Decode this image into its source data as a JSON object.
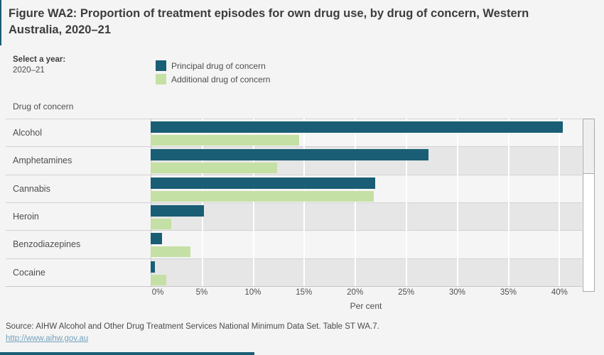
{
  "title": "Figure WA2: Proportion of treatment episodes for own drug use, by drug of concern, Western Australia, 2020–21",
  "year_selector": {
    "label": "Select a year:",
    "value": "2020–21"
  },
  "legend": [
    {
      "label": "Principal drug of concern",
      "color": "#195e75"
    },
    {
      "label": "Additional drug of concern",
      "color": "#c5e0a4"
    }
  ],
  "row_header": "Drug of concern",
  "chart_data": {
    "type": "bar",
    "orientation": "horizontal",
    "title": "Figure WA2: Proportion of treatment episodes for own drug use, by drug of concern, Western Australia, 2020–21",
    "categories": [
      "Alcohol",
      "Amphetamines",
      "Cannabis",
      "Heroin",
      "Benzodiazepines",
      "Cocaine"
    ],
    "series": [
      {
        "name": "Principal drug of concern",
        "color": "#195e75",
        "values": [
          40.3,
          27.2,
          22.0,
          5.2,
          1.1,
          0.4
        ]
      },
      {
        "name": "Additional drug of concern",
        "color": "#c5e0a4",
        "values": [
          14.5,
          12.4,
          21.8,
          2.0,
          3.9,
          1.5
        ]
      }
    ],
    "xlabel": "Per cent",
    "ylabel": "Drug of concern",
    "x_tick_labels": [
      "0%",
      "5%",
      "10%",
      "15%",
      "20%",
      "25%",
      "30%",
      "35%",
      "40%"
    ],
    "x_tick_values": [
      0,
      5,
      10,
      15,
      20,
      25,
      30,
      35,
      40
    ],
    "xlim": [
      0,
      42.2
    ],
    "gridlines": true,
    "legend_position": "top"
  },
  "source": {
    "text": "Source: AIHW Alcohol and Other Drug Treatment Services National Minimum Data Set. Table ST WA.7.",
    "link": "http://www.aihw.gov.au"
  }
}
